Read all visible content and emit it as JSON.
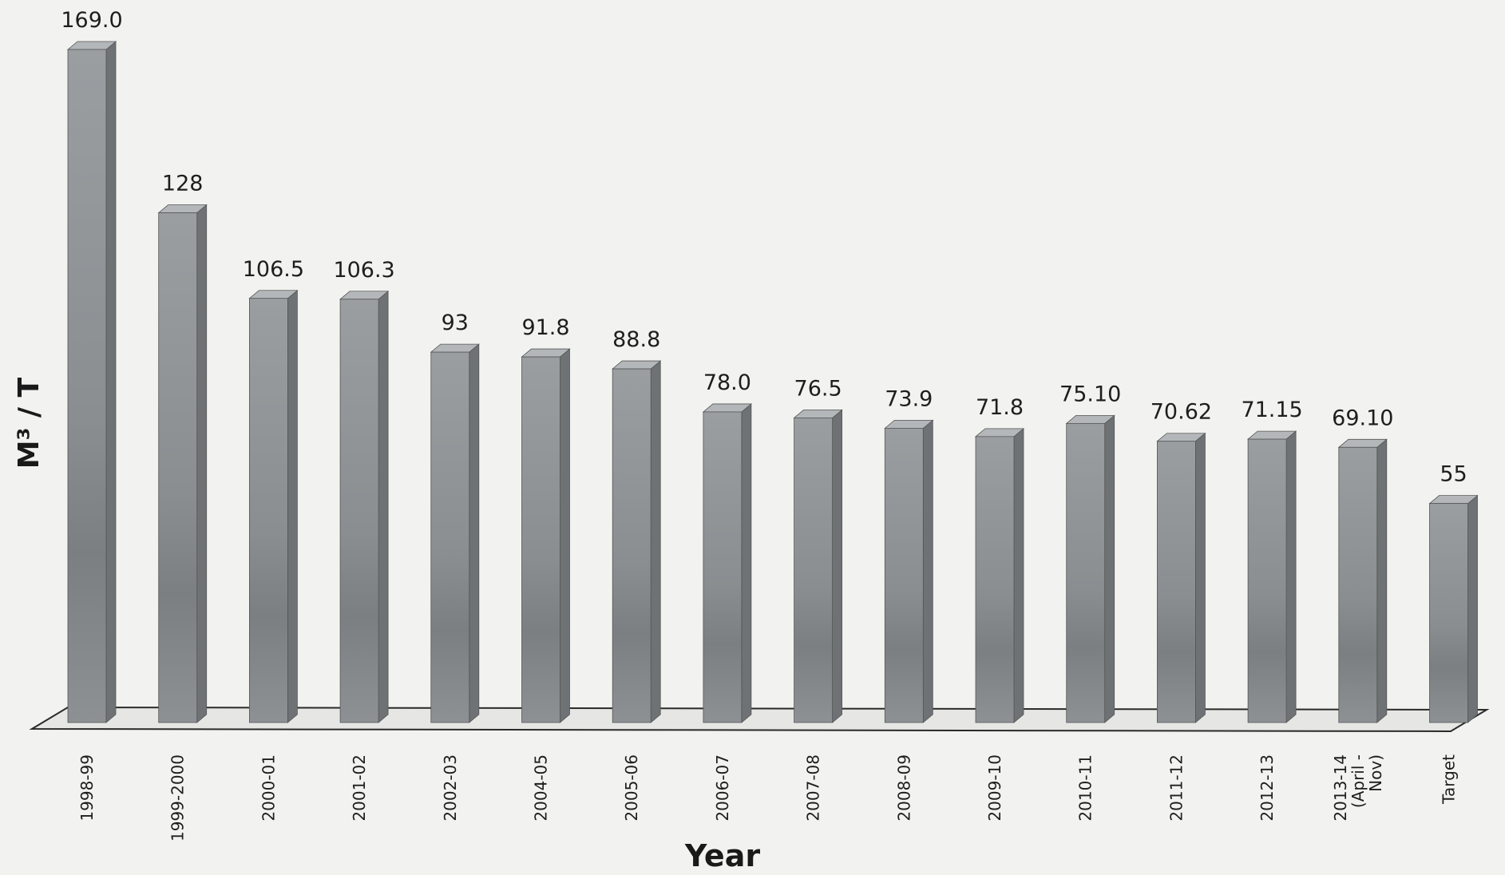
{
  "chart_data": {
    "type": "bar",
    "title": "",
    "xlabel": "Year",
    "ylabel": "M³ / T",
    "ylim": [
      0,
      169
    ],
    "grid": false,
    "legend": "none",
    "categories": [
      "1998-99",
      "1999-2000",
      "2000-01",
      "2001-02",
      "2002-03",
      "2004-05",
      "2005-06",
      "2006-07",
      "2007-08",
      "2008-09",
      "2009-10",
      "2010-11",
      "2011-12",
      "2012-13",
      "2013-14 (April - Nov)",
      "Target"
    ],
    "category_lines": [
      [
        "1998-99"
      ],
      [
        "1999-2000"
      ],
      [
        "2000-01"
      ],
      [
        "2001-02"
      ],
      [
        "2002-03"
      ],
      [
        "2004-05"
      ],
      [
        "2005-06"
      ],
      [
        "2006-07"
      ],
      [
        "2007-08"
      ],
      [
        "2008-09"
      ],
      [
        "2009-10"
      ],
      [
        "2010-11"
      ],
      [
        "2011-12"
      ],
      [
        "2012-13"
      ],
      [
        "2013-14",
        "(April -",
        "Nov)"
      ],
      [
        "Target"
      ]
    ],
    "values": [
      169.0,
      128,
      106.5,
      106.3,
      93,
      91.8,
      88.8,
      78.0,
      76.5,
      73.9,
      71.8,
      75.1,
      70.62,
      71.15,
      69.1,
      55
    ],
    "value_labels": [
      "169.0",
      "128",
      "106.5",
      "106.3",
      "93",
      "91.8",
      "88.8",
      "78.0",
      "76.5",
      "73.9",
      "71.8",
      "75.10",
      "70.62",
      "71.15",
      "69.10",
      "55"
    ],
    "colors": {
      "bar_front": "#8f9396",
      "bar_side": "#6e7275",
      "bar_top": "#b4b7b9",
      "floor": "#e6e7e4",
      "floor_edge": "#2a2a2a",
      "text": "#1e1e1e"
    }
  }
}
